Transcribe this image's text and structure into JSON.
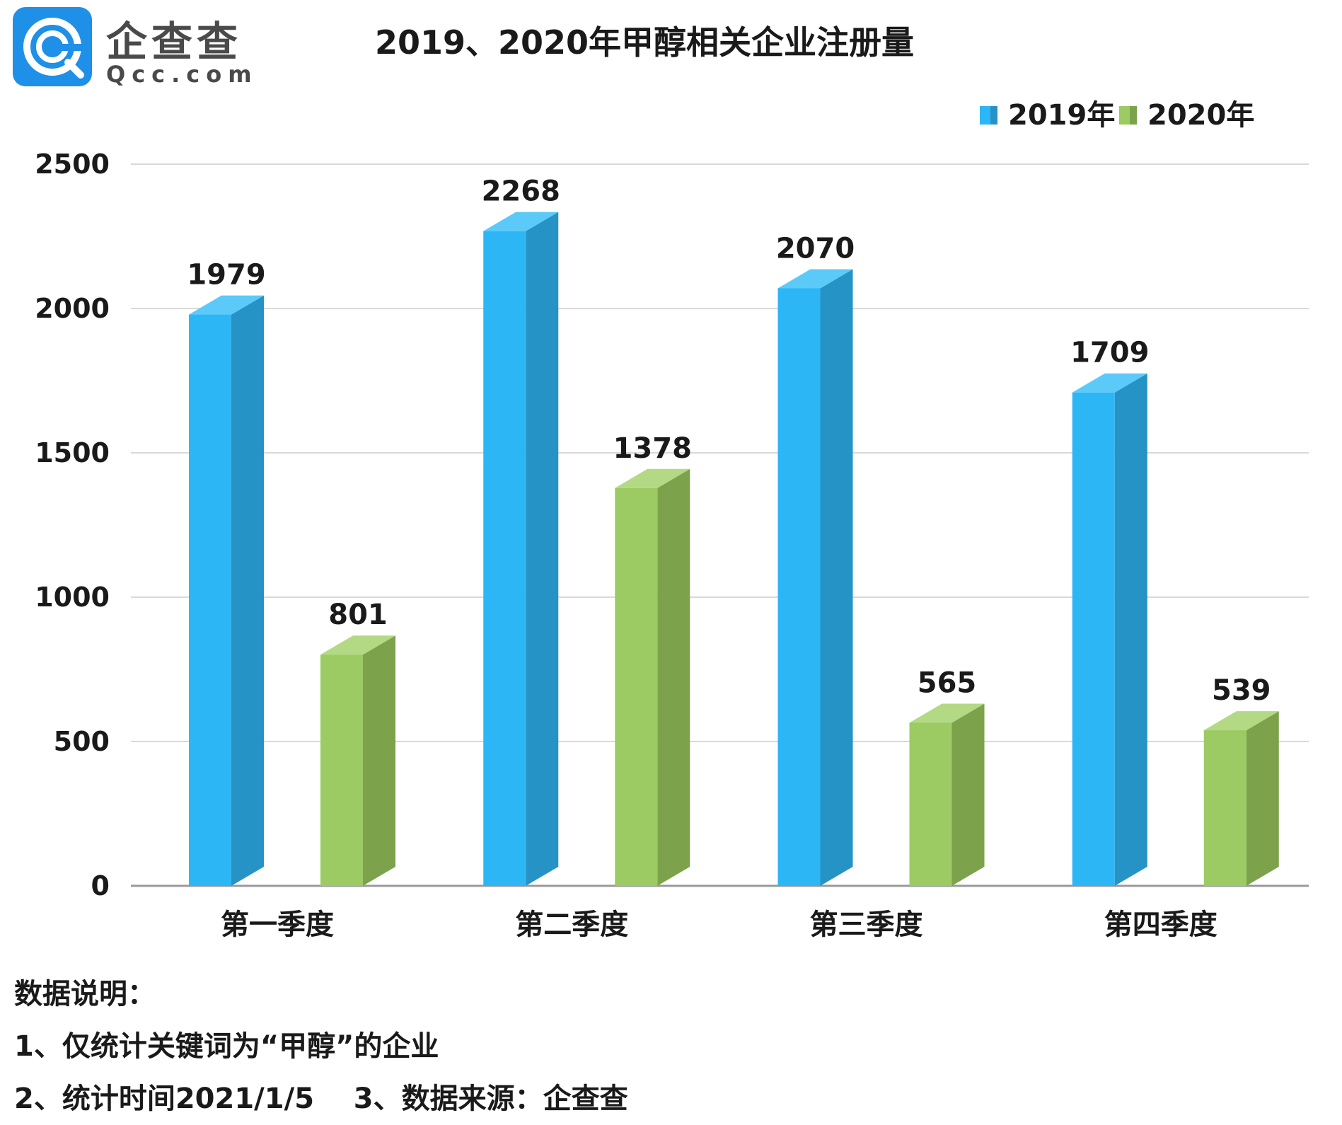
{
  "logo": {
    "name": "企查查",
    "domain": "Qcc.com"
  },
  "chart_data": {
    "type": "bar",
    "title": "2019、2020年甲醇相关企业注册量",
    "categories": [
      "第一季度",
      "第二季度",
      "第三季度",
      "第四季度"
    ],
    "series": [
      {
        "name": "2019年",
        "values": [
          1979,
          2268,
          2070,
          1709
        ],
        "color": "#2db6f5",
        "side_color": "#2593c6",
        "top_color": "#5ccaf8"
      },
      {
        "name": "2020年",
        "values": [
          801,
          1378,
          565,
          539
        ],
        "color": "#9bcb62",
        "side_color": "#7ca34c",
        "top_color": "#b3d985"
      }
    ],
    "yticks": [
      0,
      500,
      1000,
      1500,
      2000,
      2500
    ],
    "ylim": [
      0,
      2500
    ],
    "xlabel": "",
    "ylabel": "",
    "grid": true,
    "legend": "top-right"
  },
  "notes": {
    "heading": "数据说明：",
    "line1": "1、仅统计关键词为“甲醇”的企业",
    "line2": "2、统计时间2021/1/5    3、数据来源：企查查"
  }
}
